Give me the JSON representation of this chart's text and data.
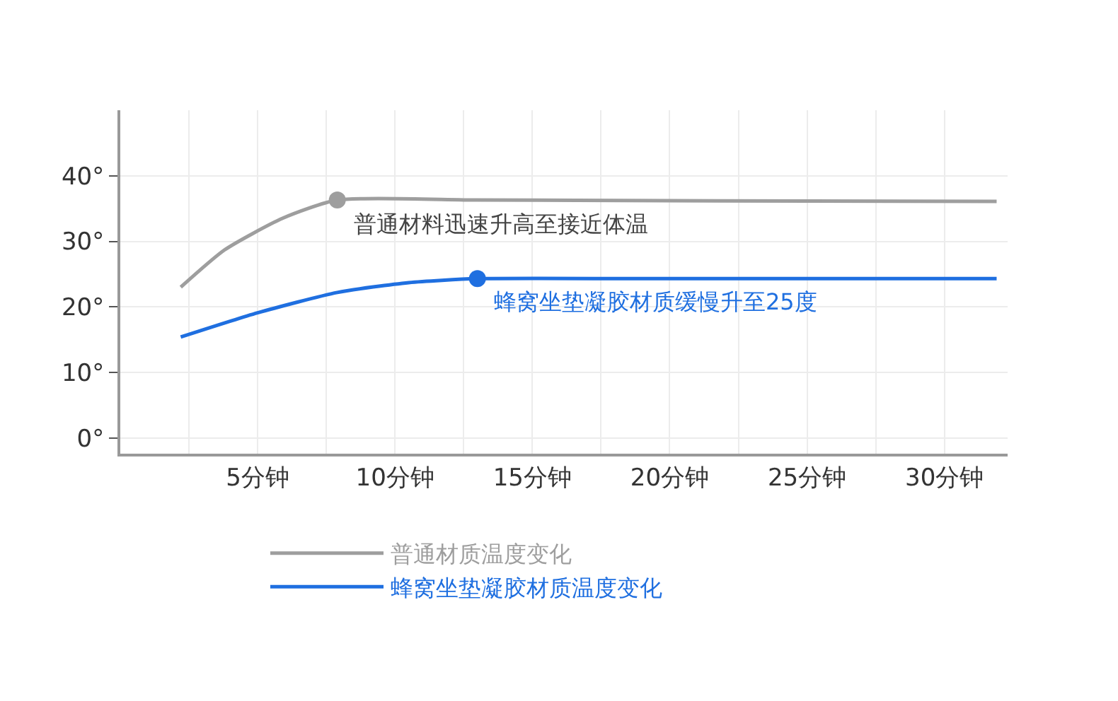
{
  "chart_data": {
    "type": "line",
    "x": [
      2.2,
      3.8,
      5.9,
      7.9,
      13.0,
      20.0,
      31.9
    ],
    "series": [
      {
        "name": "普通材质温度变化",
        "color": "#9e9e9e",
        "values": [
          23.0,
          28.7,
          33.5,
          36.3,
          36.3,
          36.2,
          36.1
        ]
      },
      {
        "name": "蜂窝坐垫凝胶材质温度变化",
        "color": "#1f6fe0",
        "x": [
          2.2,
          5.0,
          7.9,
          10.5,
          13.0,
          20.0,
          31.9
        ],
        "values": [
          15.4,
          19.1,
          22.2,
          23.7,
          24.3,
          24.3,
          24.3
        ]
      },
      {
        "type": "scatter",
        "marker": "circle",
        "color": "#9e9e9e",
        "x": [
          7.9
        ],
        "values": [
          36.3
        ]
      },
      {
        "type": "scatter",
        "marker": "circle",
        "color": "#1f6fe0",
        "x": [
          13.0
        ],
        "values": [
          24.3
        ]
      }
    ],
    "annotations": [
      {
        "text": "普通材料迅速升高至接近体温",
        "x": 7.9,
        "y": 36.3
      },
      {
        "text": "蜂窝坐垫凝胶材质缓慢升至25度",
        "x": 13.0,
        "y": 24.3
      }
    ],
    "xlim": [
      0,
      32.3
    ],
    "ylim": [
      -2.4,
      50
    ],
    "xticks": [
      {
        "value": 2.5,
        "label": null
      },
      {
        "value": 5,
        "label": "5分钟"
      },
      {
        "value": 7.5,
        "label": null
      },
      {
        "value": 10,
        "label": "10分钟"
      },
      {
        "value": 12.5,
        "label": null
      },
      {
        "value": 15,
        "label": "15分钟"
      },
      {
        "value": 17.5,
        "label": null
      },
      {
        "value": 20,
        "label": "20分钟"
      },
      {
        "value": 22.5,
        "label": null
      },
      {
        "value": 25,
        "label": "25分钟"
      },
      {
        "value": 27.5,
        "label": null
      },
      {
        "value": 30,
        "label": "30分钟"
      }
    ],
    "yticks": [
      {
        "value": 0,
        "label": "0°"
      },
      {
        "value": 10,
        "label": "10°"
      },
      {
        "value": 20,
        "label": "20°"
      },
      {
        "value": 30,
        "label": "30°"
      },
      {
        "value": 40,
        "label": "40°"
      }
    ],
    "grid": true,
    "legend": "bottom",
    "line_style": "solid"
  }
}
